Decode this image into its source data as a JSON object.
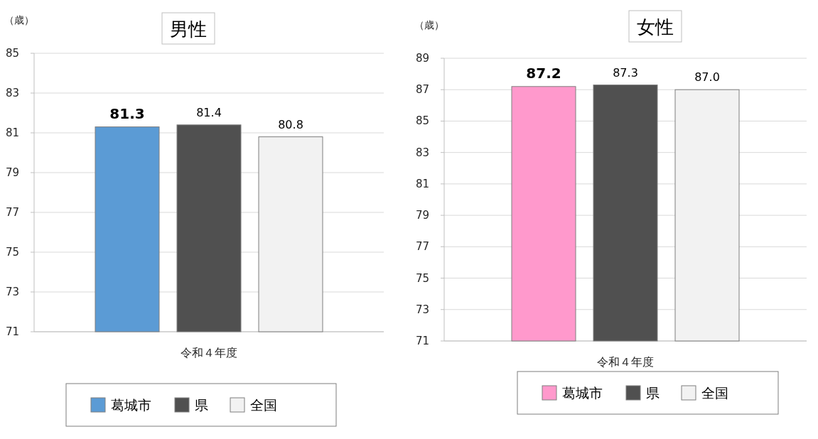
{
  "chart_data": [
    {
      "type": "bar",
      "title": "男性",
      "ylabel": "（歳）",
      "categories": [
        "令和４年度"
      ],
      "series": [
        {
          "name": "葛城市",
          "color": "#5b9bd5",
          "values": [
            81.3
          ],
          "value_labels": [
            "81.3"
          ]
        },
        {
          "name": "県",
          "color": "#505050",
          "values": [
            81.4
          ],
          "value_labels": [
            "81.4"
          ]
        },
        {
          "name": "全国",
          "color": "#f2f2f2",
          "values": [
            80.8
          ],
          "value_labels": [
            "80.8"
          ]
        }
      ],
      "ylim": [
        71,
        85
      ],
      "yticks": [
        71,
        73,
        75,
        77,
        79,
        81,
        83,
        85
      ],
      "grid": "y",
      "legend": "bottom"
    },
    {
      "type": "bar",
      "title": "女性",
      "ylabel": "（歳）",
      "categories": [
        "令和４年度"
      ],
      "series": [
        {
          "name": "葛城市",
          "color": "#ff99cc",
          "values": [
            87.2
          ],
          "value_labels": [
            "87.2"
          ]
        },
        {
          "name": "県",
          "color": "#505050",
          "values": [
            87.3
          ],
          "value_labels": [
            "87.3"
          ]
        },
        {
          "name": "全国",
          "color": "#f2f2f2",
          "values": [
            87.0
          ],
          "value_labels": [
            "87.0"
          ]
        }
      ],
      "ylim": [
        71,
        89
      ],
      "yticks": [
        71,
        73,
        75,
        77,
        79,
        81,
        83,
        85,
        87,
        89
      ],
      "grid": "y",
      "legend": "bottom"
    }
  ]
}
